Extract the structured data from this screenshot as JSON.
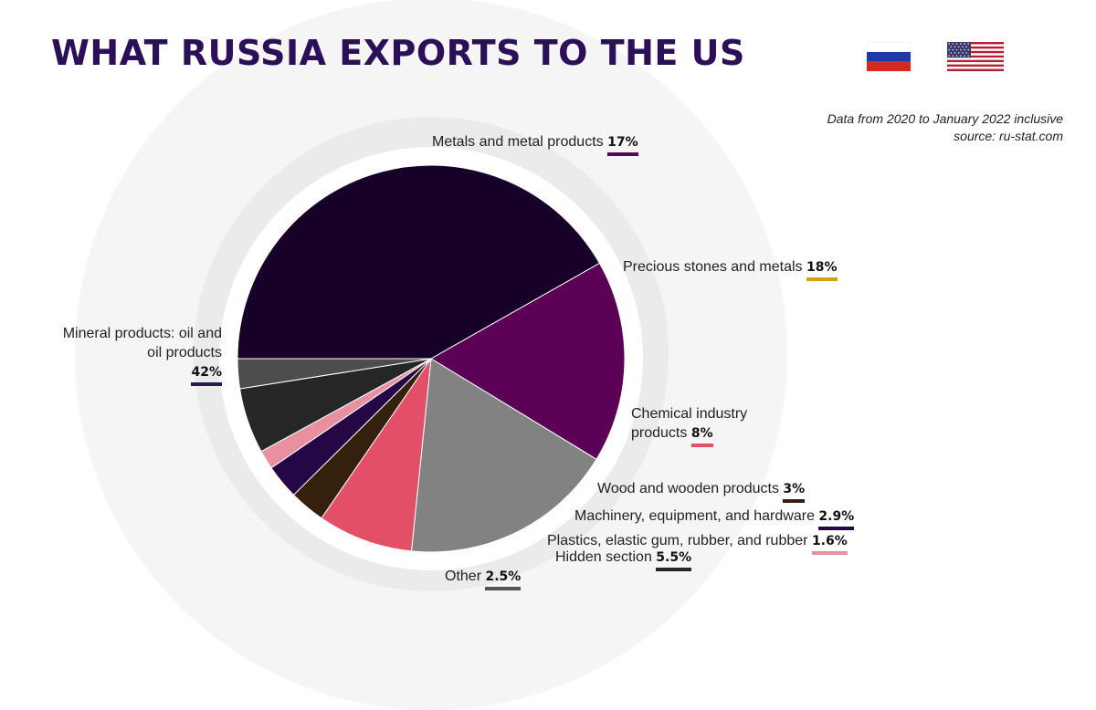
{
  "title": "WHAT RUSSIA EXPORTS TO THE US",
  "note": {
    "line1": "Data from 2020 to January 2022 inclusive",
    "line2": "source: ru-stat.com"
  },
  "flags": [
    "russia-flag-icon",
    "usa-flag-icon"
  ],
  "chart_data": {
    "type": "pie",
    "start_angle_deg": 180,
    "direction": "clockwise",
    "slices": [
      {
        "label": "Mineral products: oil and oil products",
        "label_lines": [
          "Mineral products: oil and",
          "oil products"
        ],
        "value": 42,
        "value_label": "42%",
        "color": "#170128",
        "accent": "#2c1650"
      },
      {
        "label": "Metals and metal products",
        "value": 17,
        "value_label": "17%",
        "color": "#5c0055",
        "accent": "#5c0055"
      },
      {
        "label": "Precious stones and metals",
        "value": 18,
        "value_label": "18%",
        "color": "#828282",
        "accent": "#d4a017"
      },
      {
        "label": "Chemical industry products",
        "label_lines": [
          "Chemical industry",
          "products"
        ],
        "value": 8,
        "value_label": "8%",
        "color": "#e24f66",
        "accent": "#e24f66"
      },
      {
        "label": "Wood and wooden products",
        "value": 3,
        "value_label": "3%",
        "color": "#35200e",
        "accent": "#35200e"
      },
      {
        "label": "Machinery, equipment, and hardware",
        "value": 2.9,
        "value_label": "2.9%",
        "color": "#250745",
        "accent": "#250745"
      },
      {
        "label": "Plastics, elastic gum, rubber, and rubber",
        "value": 1.6,
        "value_label": "1.6%",
        "color": "#e8909f",
        "accent": "#e8909f"
      },
      {
        "label": "Hidden section",
        "value": 5.5,
        "value_label": "5.5%",
        "color": "#262626",
        "accent": "#262626"
      },
      {
        "label": "Other",
        "value": 2.5,
        "value_label": "2.5%",
        "color": "#4d4d4d",
        "accent": "#555555"
      }
    ]
  }
}
